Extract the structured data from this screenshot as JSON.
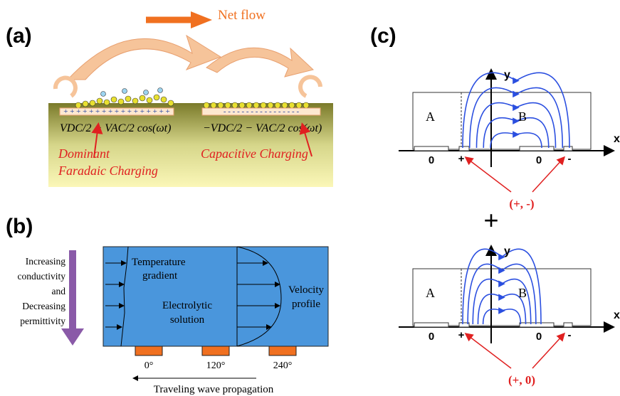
{
  "panels": {
    "a": {
      "label": "(a)",
      "net_flow": "Net flow",
      "left_charges": "+ + + + + + + + + + + + + + + + +",
      "right_charges": "- - - - - - - - - - - - - - - - -",
      "left_voltage": "VDC/2 + VAC/2 cos(ωt)",
      "right_voltage": "−VDC/2 − VAC/2 cos(ωt)",
      "left_caption": [
        "Dominant",
        "Faradaic Charging"
      ],
      "right_caption": "Capacitive Charging"
    },
    "b": {
      "label": "(b)",
      "gradient_note": [
        "Increasing",
        "conductivity",
        "and",
        "Decreasing",
        "permittivity"
      ],
      "temperature": [
        "Temperature",
        "gradient"
      ],
      "solution": [
        "Electrolytic",
        "solution"
      ],
      "velocity": [
        "Velocity",
        "profile"
      ],
      "phases": [
        "0°",
        "120°",
        "240°"
      ],
      "propagation": "Traveling wave propagation"
    },
    "c": {
      "label": "(c)",
      "top": {
        "y": "y",
        "x": "x",
        "region_a": "A",
        "region_b": "B",
        "electrodes": [
          "0",
          "+",
          "0",
          "-"
        ],
        "polarity": "(+, -)"
      },
      "plus": "+",
      "bottom": {
        "y": "y",
        "x": "x",
        "region_a": "A",
        "region_b": "B",
        "electrodes": [
          "0",
          "+",
          "0",
          "-"
        ],
        "polarity": "(+, 0)"
      }
    }
  }
}
